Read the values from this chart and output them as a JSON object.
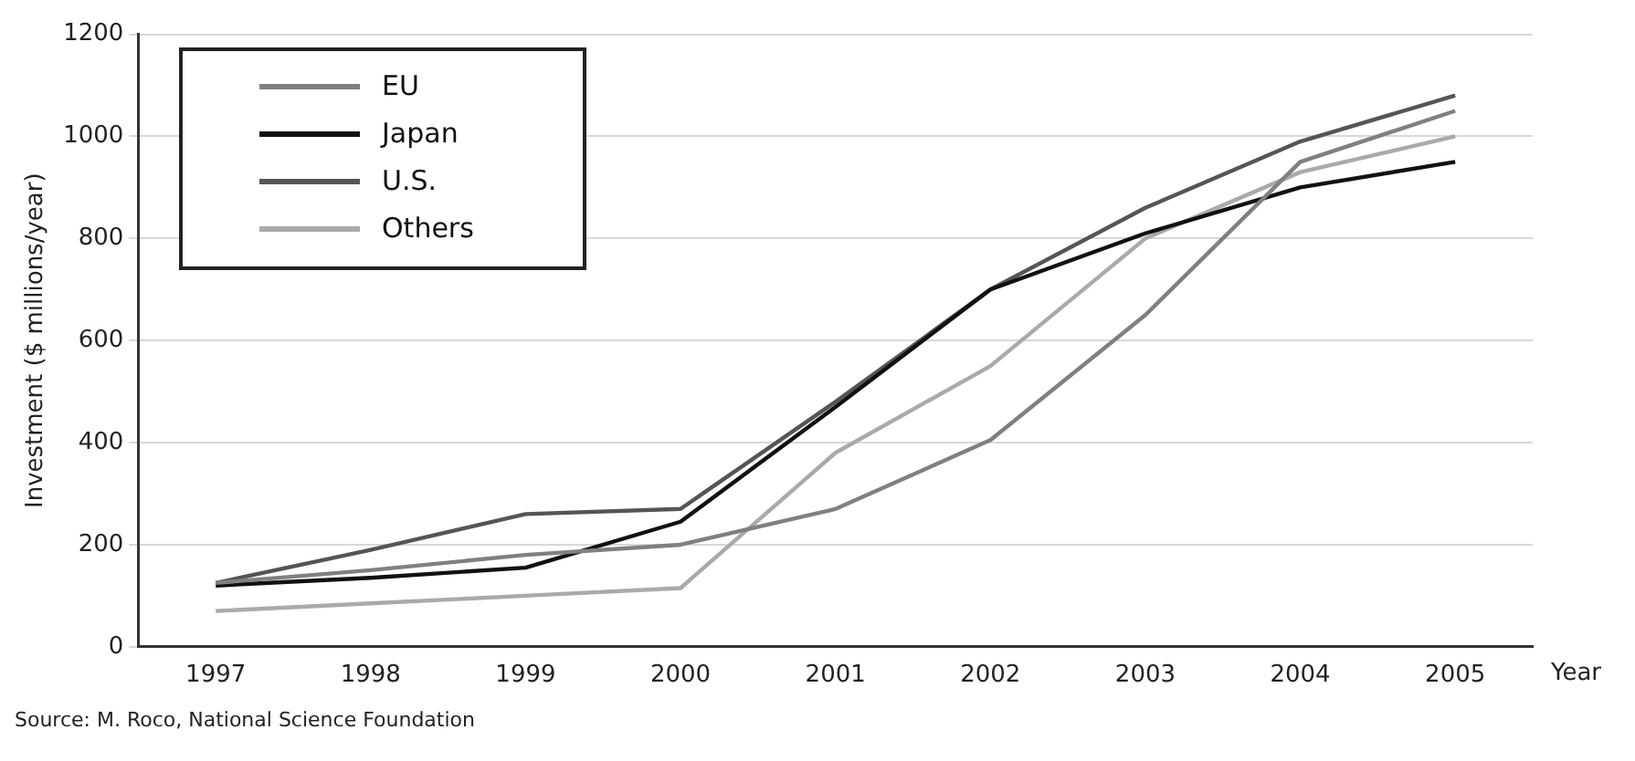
{
  "chart_data": {
    "type": "line",
    "xlabel": "Year",
    "ylabel": "Investment ($ millions/year)",
    "categories": [
      "1997",
      "1998",
      "1999",
      "2000",
      "2001",
      "2002",
      "2003",
      "2004",
      "2005"
    ],
    "series": [
      {
        "name": "EU",
        "color": "#808080",
        "values": [
          125,
          150,
          180,
          200,
          270,
          405,
          650,
          950,
          1050
        ]
      },
      {
        "name": "Japan",
        "color": "#111111",
        "values": [
          120,
          135,
          155,
          245,
          470,
          700,
          810,
          900,
          950
        ]
      },
      {
        "name": "U.S.",
        "color": "#555555",
        "values": [
          125,
          190,
          260,
          270,
          480,
          700,
          860,
          990,
          1080
        ]
      },
      {
        "name": "Others",
        "color": "#aaaaaa",
        "values": [
          70,
          85,
          100,
          115,
          380,
          550,
          800,
          930,
          1000
        ]
      }
    ],
    "ylim": [
      0,
      1200
    ],
    "yticks": [
      0,
      200,
      400,
      600,
      800,
      1000,
      1200
    ],
    "grid": "y",
    "legend": "top left",
    "marker": "none",
    "line_style": "solid",
    "annotations": [
      "Source: M. Roco, National Science Foundation"
    ]
  }
}
